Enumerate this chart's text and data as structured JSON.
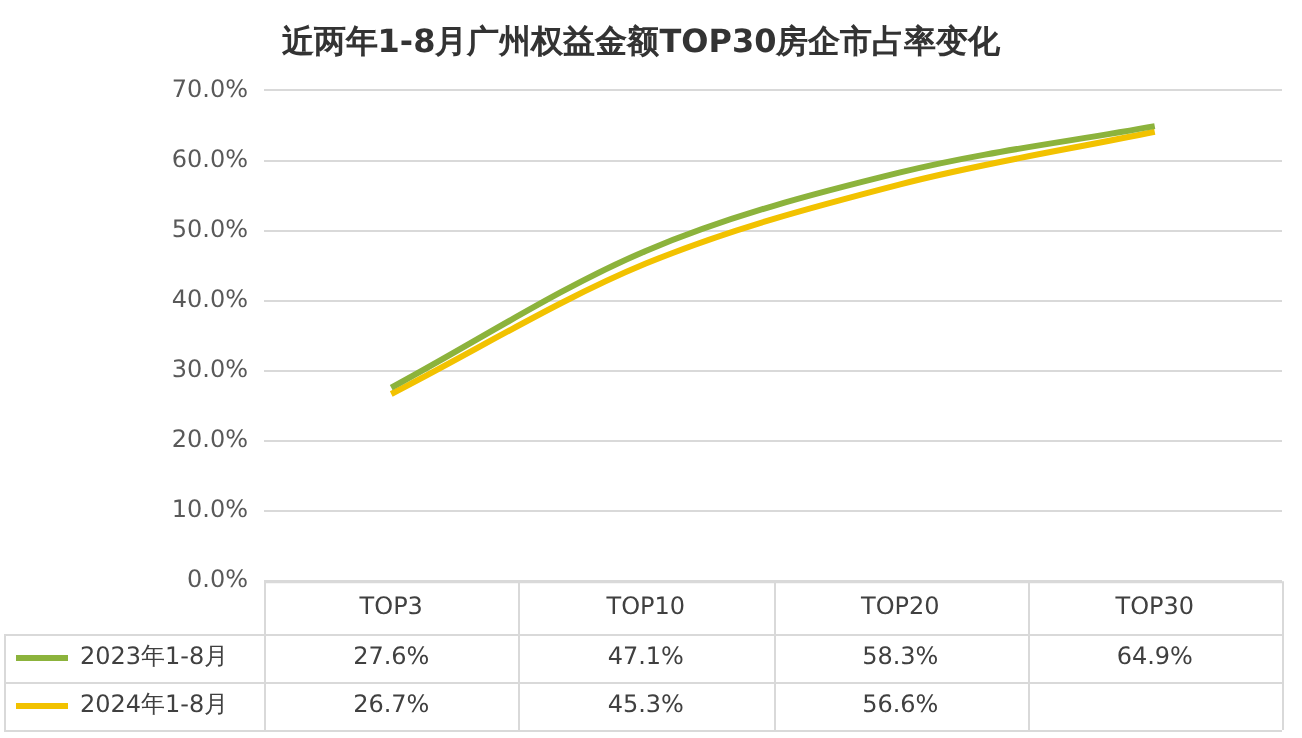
{
  "chart_data": {
    "type": "line",
    "title": "近两年1-8月广州权益金额TOP30房企市占率变化",
    "categories": [
      "TOP3",
      "TOP10",
      "TOP20",
      "TOP30"
    ],
    "series": [
      {
        "name": "2023年1-8月",
        "color": "#8cb33c",
        "values": [
          27.6,
          47.1,
          58.3,
          64.9
        ],
        "value_labels": [
          "27.6%",
          "47.1%",
          "58.3%",
          "64.9%"
        ]
      },
      {
        "name": "2024年1-8月",
        "color": "#f2c200",
        "values": [
          26.7,
          45.3,
          56.6,
          64.1
        ],
        "value_labels": [
          "26.7%",
          "45.3%",
          "56.6%",
          null
        ]
      }
    ],
    "ylim": [
      0,
      70
    ],
    "yticks": [
      {
        "value": 0,
        "label": "0.0%"
      },
      {
        "value": 10,
        "label": "10.0%"
      },
      {
        "value": 20,
        "label": "20.0%"
      },
      {
        "value": 30,
        "label": "30.0%"
      },
      {
        "value": 40,
        "label": "40.0%"
      },
      {
        "value": 50,
        "label": "50.0%"
      },
      {
        "value": 60,
        "label": "60.0%"
      },
      {
        "value": 70,
        "label": "70.0%"
      }
    ],
    "grid": "y",
    "legend": "bottom",
    "marker": "none"
  }
}
